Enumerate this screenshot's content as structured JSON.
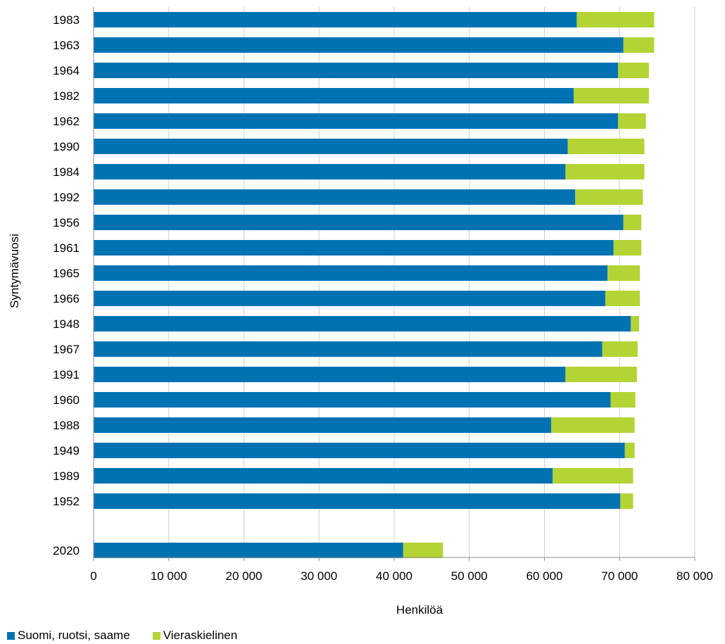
{
  "chart_data": {
    "type": "bar",
    "orientation": "horizontal",
    "stacked": true,
    "xlabel": "Henkilöä",
    "ylabel": "Syntymävuosi",
    "xlim": [
      0,
      80000
    ],
    "x_ticks": [
      0,
      10000,
      20000,
      30000,
      40000,
      50000,
      60000,
      70000,
      80000
    ],
    "x_tick_labels": [
      "0",
      "10 000",
      "20 000",
      "30 000",
      "40 000",
      "50 000",
      "60 000",
      "70 000",
      "80 000"
    ],
    "grid": "vertical",
    "legend_position": "bottom-left",
    "categories": [
      "1983",
      "1963",
      "1964",
      "1982",
      "1962",
      "1990",
      "1984",
      "1992",
      "1956",
      "1961",
      "1965",
      "1966",
      "1948",
      "1967",
      "1991",
      "1960",
      "1988",
      "1949",
      "1989",
      "1952",
      "2020"
    ],
    "series": [
      {
        "name": "Suomi, ruotsi, saame",
        "color": "#0072b2",
        "values": [
          64300,
          70500,
          69800,
          63900,
          69800,
          63100,
          62800,
          64100,
          70500,
          69200,
          68400,
          68100,
          71500,
          67700,
          62800,
          68800,
          60900,
          70700,
          61100,
          70100,
          41200
        ]
      },
      {
        "name": "Vieraskielinen",
        "color": "#b4d335",
        "values": [
          10300,
          4100,
          4100,
          10000,
          3700,
          10200,
          10500,
          9000,
          2400,
          3700,
          4300,
          4600,
          1100,
          4700,
          9500,
          3300,
          11100,
          1300,
          10700,
          1700,
          5300
        ]
      }
    ]
  }
}
